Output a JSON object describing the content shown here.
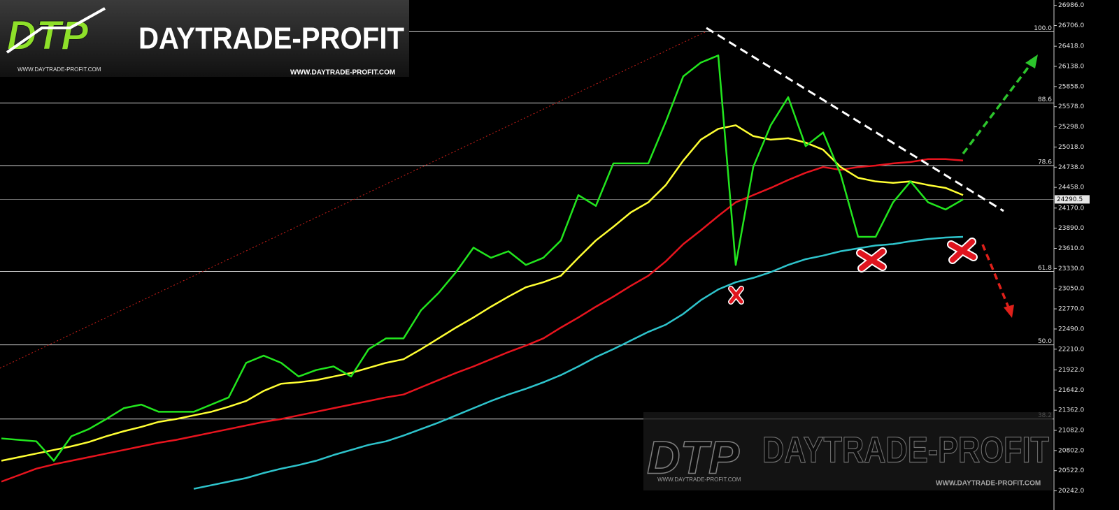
{
  "chart_data": {
    "type": "line",
    "categories": [
      null,
      null,
      null,
      null,
      null,
      null,
      null,
      null,
      null,
      null,
      null,
      null,
      null,
      null,
      null,
      null,
      null,
      null,
      null,
      null,
      null,
      null,
      null,
      null,
      null,
      null,
      null,
      null,
      null,
      null,
      null,
      null,
      null,
      null,
      null,
      null,
      null,
      null,
      null,
      null,
      null,
      null,
      null,
      null,
      null,
      null,
      null,
      null,
      null,
      null,
      null,
      null,
      null,
      null,
      null,
      null
    ],
    "series": [
      {
        "color": "#e8141e",
        "values": [
          20370,
          20460,
          20550,
          20610,
          20660,
          20710,
          20760,
          20810,
          20860,
          20910,
          20950,
          21000,
          21050,
          21100,
          21150,
          21200,
          21240,
          21290,
          21340,
          21390,
          21440,
          21490,
          21540,
          21580,
          21680,
          21780,
          21880,
          21970,
          22070,
          22170,
          22260,
          22360,
          22510,
          22650,
          22800,
          22940,
          23090,
          23230,
          23430,
          23670,
          23860,
          24060,
          24250,
          24350,
          24450,
          24560,
          24660,
          24740,
          24700,
          24740,
          24760,
          24790,
          24810,
          24850,
          24850,
          24830
        ]
      },
      {
        "color": "#2ec4cc",
        "values": [
          null,
          null,
          null,
          null,
          null,
          null,
          null,
          null,
          null,
          null,
          null,
          20270,
          20320,
          20370,
          20420,
          20490,
          20550,
          20600,
          20660,
          20740,
          20810,
          20880,
          20930,
          21010,
          21100,
          21190,
          21290,
          21390,
          21490,
          21580,
          21660,
          21750,
          21850,
          21970,
          22100,
          22210,
          22330,
          22450,
          22550,
          22700,
          22890,
          23040,
          23140,
          23200,
          23280,
          23380,
          23460,
          23510,
          23570,
          23610,
          23650,
          23670,
          23710,
          23740,
          23760,
          23770
        ]
      },
      {
        "color": "#ffff33",
        "values": [
          20660,
          20710,
          20760,
          20810,
          20860,
          20920,
          21000,
          21070,
          21130,
          21200,
          21240,
          21290,
          21340,
          21410,
          21490,
          21630,
          21730,
          21750,
          21780,
          21830,
          21880,
          21950,
          22020,
          22070,
          22210,
          22360,
          22510,
          22650,
          22800,
          22940,
          23070,
          23140,
          23230,
          23480,
          23720,
          23910,
          24110,
          24250,
          24490,
          24830,
          25120,
          25270,
          25320,
          25170,
          25120,
          25140,
          25080,
          24980,
          24740,
          24590,
          24540,
          24520,
          24540,
          24490,
          24450,
          24350
        ]
      },
      {
        "color": "#22e61e",
        "values": [
          20970,
          20950,
          20930,
          20660,
          21000,
          21100,
          21240,
          21390,
          21440,
          21340,
          21340,
          21340,
          21440,
          21540,
          22020,
          22120,
          22020,
          21830,
          21920,
          21970,
          21830,
          22210,
          22360,
          22360,
          22750,
          22990,
          23280,
          23620,
          23480,
          23570,
          23380,
          23480,
          23720,
          24350,
          24200,
          24790,
          24790,
          24790,
          25370,
          26000,
          26190,
          26290,
          23380,
          24740,
          25320,
          25710,
          25030,
          25220,
          24640,
          23770,
          23770,
          24250,
          24540,
          24250,
          24150,
          24290
        ]
      }
    ],
    "ylim": [
      20170,
      27060
    ],
    "yticks": [
      {
        "value": 26986,
        "label": "26986.0"
      },
      {
        "value": 26706,
        "label": "26706.0"
      },
      {
        "value": 26418,
        "label": "26418.0"
      },
      {
        "value": 26138,
        "label": "26138.0"
      },
      {
        "value": 25858,
        "label": "25858.0"
      },
      {
        "value": 25578,
        "label": "25578.0"
      },
      {
        "value": 25298,
        "label": "25298.0"
      },
      {
        "value": 25018,
        "label": "25018.0"
      },
      {
        "value": 24738,
        "label": "24738.0"
      },
      {
        "value": 24458,
        "label": "24458.0"
      },
      {
        "value": 24170,
        "label": "24170.0"
      },
      {
        "value": 23890,
        "label": "23890.0"
      },
      {
        "value": 23610,
        "label": "23610.0"
      },
      {
        "value": 23330,
        "label": "23330.0"
      },
      {
        "value": 23050,
        "label": "23050.0"
      },
      {
        "value": 22770,
        "label": "22770.0"
      },
      {
        "value": 22490,
        "label": "22490.0"
      },
      {
        "value": 22210,
        "label": "22210.0"
      },
      {
        "value": 21922,
        "label": "21922.0"
      },
      {
        "value": 21642,
        "label": "21642.0"
      },
      {
        "value": 21362,
        "label": "21362.0"
      },
      {
        "value": 21082,
        "label": "21082.0"
      },
      {
        "value": 20802,
        "label": "20802.0"
      },
      {
        "value": 20522,
        "label": "20522.0"
      },
      {
        "value": 20242,
        "label": "20242.0"
      }
    ],
    "levels": [
      {
        "value": 26620,
        "label": "100.0"
      },
      {
        "value": 25630,
        "label": "88.6"
      },
      {
        "value": 24760,
        "label": "78.6"
      },
      {
        "value": 23290,
        "label": "61.8"
      },
      {
        "value": 22270,
        "label": "50.0"
      },
      {
        "value": 21240,
        "label": "38.2"
      }
    ],
    "last_price": 24290.5,
    "grid": false,
    "logo": {
      "mark": "DTP",
      "name": "DAYTRADE-PROFIT",
      "url": "WWW.DAYTRADE-PROFIT.COM"
    }
  }
}
